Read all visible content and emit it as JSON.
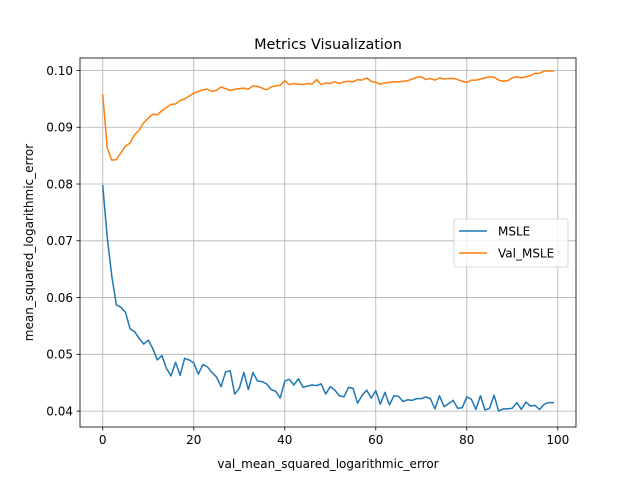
{
  "chart_data": {
    "type": "line",
    "title": "Metrics Visualization",
    "xlabel": "val_mean_squared_logarithmic_error",
    "ylabel": "mean_squared_logarithmic_error",
    "xlim": [
      -5,
      104
    ],
    "ylim": [
      0.0372,
      0.1022
    ],
    "xticks": [
      0,
      20,
      40,
      60,
      80,
      100
    ],
    "yticks": [
      0.04,
      0.05,
      0.06,
      0.07,
      0.08,
      0.09,
      0.1
    ],
    "ytick_labels": [
      "0.04",
      "0.05",
      "0.06",
      "0.07",
      "0.08",
      "0.09",
      "0.10"
    ],
    "grid": true,
    "legend_position": "center-right",
    "series": [
      {
        "name": "MSLE",
        "color": "#1f77b4",
        "x": [
          0,
          1,
          2,
          3,
          4,
          5,
          6,
          7,
          8,
          9,
          10,
          11,
          12,
          13,
          14,
          15,
          16,
          17,
          18,
          19,
          20,
          21,
          22,
          23,
          24,
          25,
          26,
          27,
          28,
          29,
          30,
          31,
          32,
          33,
          34,
          35,
          36,
          37,
          38,
          39,
          40,
          41,
          42,
          43,
          44,
          45,
          46,
          47,
          48,
          49,
          50,
          51,
          52,
          53,
          54,
          55,
          56,
          57,
          58,
          59,
          60,
          61,
          62,
          63,
          64,
          65,
          66,
          67,
          68,
          69,
          70,
          71,
          72,
          73,
          74,
          75,
          76,
          77,
          78,
          79,
          80,
          81,
          82,
          83,
          84,
          85,
          86,
          87,
          88,
          89,
          90,
          91,
          92,
          93,
          94,
          95,
          96,
          97,
          98,
          99
        ],
        "y": [
          0.0797,
          0.0705,
          0.0637,
          0.0587,
          0.0583,
          0.0574,
          0.0545,
          0.054,
          0.0528,
          0.0518,
          0.0525,
          0.051,
          0.049,
          0.0498,
          0.0475,
          0.0462,
          0.0486,
          0.0463,
          0.0493,
          0.049,
          0.0485,
          0.0465,
          0.0482,
          0.0478,
          0.0468,
          0.046,
          0.0443,
          0.0469,
          0.0471,
          0.043,
          0.044,
          0.0468,
          0.0438,
          0.0468,
          0.0453,
          0.0452,
          0.0448,
          0.0438,
          0.0435,
          0.0423,
          0.0453,
          0.0456,
          0.0446,
          0.0457,
          0.0442,
          0.0444,
          0.0446,
          0.0445,
          0.0448,
          0.043,
          0.0443,
          0.0437,
          0.0427,
          0.0425,
          0.0442,
          0.044,
          0.0414,
          0.0428,
          0.0437,
          0.0423,
          0.0436,
          0.0412,
          0.0433,
          0.0411,
          0.0427,
          0.0426,
          0.0417,
          0.042,
          0.0419,
          0.0422,
          0.0422,
          0.0425,
          0.0422,
          0.0404,
          0.0427,
          0.0408,
          0.0413,
          0.0419,
          0.0405,
          0.0406,
          0.0425,
          0.0421,
          0.0403,
          0.0427,
          0.0402,
          0.0405,
          0.0428,
          0.04,
          0.0404,
          0.0404,
          0.0405,
          0.0415,
          0.0403,
          0.0416,
          0.0409,
          0.041,
          0.0403,
          0.0412,
          0.0415,
          0.0415
        ]
      },
      {
        "name": "Val_MSLE",
        "color": "#ff7f0e",
        "x": [
          0,
          1,
          2,
          3,
          4,
          5,
          6,
          7,
          8,
          9,
          10,
          11,
          12,
          13,
          14,
          15,
          16,
          17,
          18,
          19,
          20,
          21,
          22,
          23,
          24,
          25,
          26,
          27,
          28,
          29,
          30,
          31,
          32,
          33,
          34,
          35,
          36,
          37,
          38,
          39,
          40,
          41,
          42,
          43,
          44,
          45,
          46,
          47,
          48,
          49,
          50,
          51,
          52,
          53,
          54,
          55,
          56,
          57,
          58,
          59,
          60,
          61,
          62,
          63,
          64,
          65,
          66,
          67,
          68,
          69,
          70,
          71,
          72,
          73,
          74,
          75,
          76,
          77,
          78,
          79,
          80,
          81,
          82,
          83,
          84,
          85,
          86,
          87,
          88,
          89,
          90,
          91,
          92,
          93,
          94,
          95,
          96,
          97,
          98,
          99
        ],
        "y": [
          0.0957,
          0.0863,
          0.0842,
          0.0843,
          0.0855,
          0.0867,
          0.0872,
          0.0887,
          0.0895,
          0.0908,
          0.0916,
          0.0923,
          0.0922,
          0.0929,
          0.0935,
          0.094,
          0.0941,
          0.0947,
          0.095,
          0.0955,
          0.096,
          0.0963,
          0.0966,
          0.0967,
          0.0963,
          0.0965,
          0.0971,
          0.0968,
          0.0965,
          0.0967,
          0.0968,
          0.0969,
          0.0967,
          0.0973,
          0.0972,
          0.0969,
          0.0966,
          0.0971,
          0.0973,
          0.0974,
          0.0982,
          0.0975,
          0.0977,
          0.0976,
          0.0975,
          0.0977,
          0.0976,
          0.0984,
          0.0975,
          0.0978,
          0.0977,
          0.098,
          0.0977,
          0.098,
          0.0981,
          0.098,
          0.0984,
          0.0983,
          0.0987,
          0.0981,
          0.0979,
          0.0976,
          0.0978,
          0.0979,
          0.098,
          0.098,
          0.0981,
          0.0982,
          0.0985,
          0.0988,
          0.0989,
          0.0984,
          0.0986,
          0.0983,
          0.0987,
          0.0985,
          0.0986,
          0.0986,
          0.0984,
          0.0981,
          0.0979,
          0.0983,
          0.0983,
          0.0985,
          0.0987,
          0.0989,
          0.0988,
          0.0983,
          0.0981,
          0.0982,
          0.0987,
          0.0989,
          0.0987,
          0.0989,
          0.0991,
          0.0995,
          0.0995,
          0.0999,
          0.0999,
          0.0999
        ]
      }
    ]
  }
}
